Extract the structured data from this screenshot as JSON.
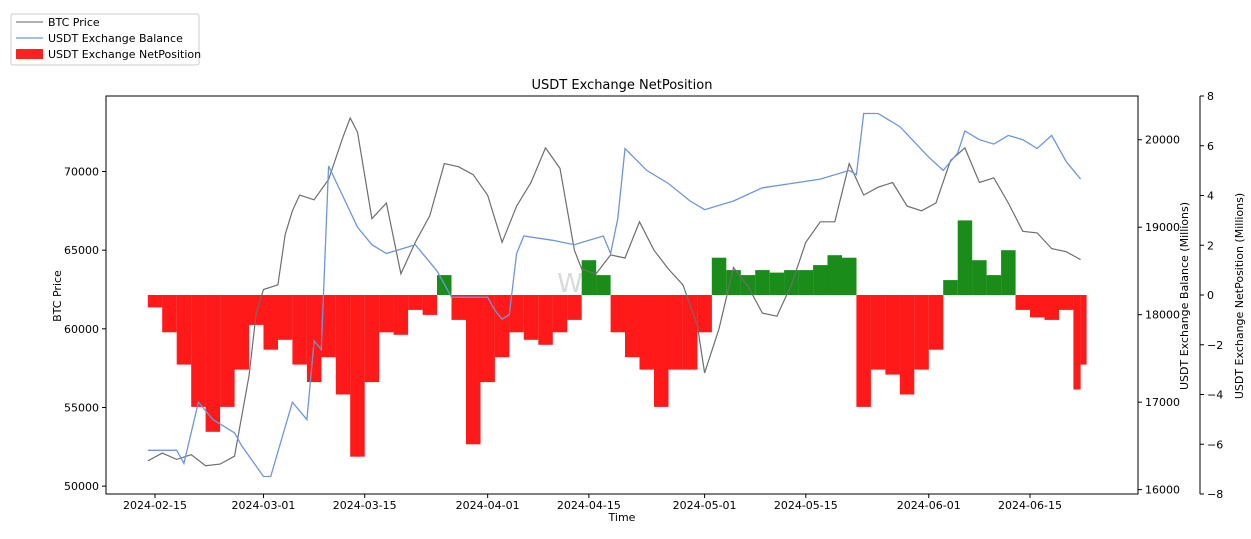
{
  "chart_data": {
    "type": "bar",
    "title": "USDT Exchange NetPosition",
    "xlabel": "Time",
    "ylabel_left": "BTC Price",
    "ylabel_right1": "USDT Exchange Balance (Millions)",
    "ylabel_right2": "USDT Exchange NetPosition (Millions)",
    "watermark": "W",
    "legend_placement": "top-left (outside plot)",
    "legend": [
      {
        "label": "BTC Price",
        "color": "#7f7f7f",
        "kind": "line"
      },
      {
        "label": "USDT Exchange Balance",
        "color": "#6f96d8",
        "kind": "line"
      },
      {
        "label": "USDT Exchange NetPosition",
        "color": "#ff0000",
        "kind": "bar"
      }
    ],
    "colors": {
      "price": "#6e6e6e",
      "balance": "#6f96d8",
      "positive": "#008000",
      "negative": "#ff0000"
    },
    "x_ticks": [
      "2024-02-15",
      "2024-03-01",
      "2024-03-15",
      "2024-04-01",
      "2024-04-15",
      "2024-05-01",
      "2024-05-15",
      "2024-06-01",
      "2024-06-15"
    ],
    "ylim_left": [
      49500,
      74800
    ],
    "y_ticks_left": [
      50000,
      55000,
      60000,
      65000,
      70000
    ],
    "ylim_right1": [
      15950,
      20500
    ],
    "y_ticks_right1": [
      16000,
      17000,
      18000,
      19000,
      20000
    ],
    "ylim_right2": [
      -8,
      8
    ],
    "y_ticks_right2": [
      -8,
      -6,
      -4,
      -2,
      0,
      2,
      4,
      6,
      8
    ],
    "btc_price": {
      "dates": [
        "2024-02-14",
        "2024-02-16",
        "2024-02-18",
        "2024-02-20",
        "2024-02-22",
        "2024-02-24",
        "2024-02-26",
        "2024-02-28",
        "2024-02-29",
        "2024-03-01",
        "2024-03-03",
        "2024-03-04",
        "2024-03-05",
        "2024-03-06",
        "2024-03-08",
        "2024-03-10",
        "2024-03-12",
        "2024-03-13",
        "2024-03-14",
        "2024-03-16",
        "2024-03-18",
        "2024-03-20",
        "2024-03-22",
        "2024-03-24",
        "2024-03-26",
        "2024-03-28",
        "2024-03-30",
        "2024-04-01",
        "2024-04-03",
        "2024-04-05",
        "2024-04-07",
        "2024-04-09",
        "2024-04-11",
        "2024-04-13",
        "2024-04-14",
        "2024-04-16",
        "2024-04-18",
        "2024-04-20",
        "2024-04-22",
        "2024-04-24",
        "2024-04-26",
        "2024-04-28",
        "2024-04-30",
        "2024-05-01",
        "2024-05-03",
        "2024-05-05",
        "2024-05-07",
        "2024-05-09",
        "2024-05-11",
        "2024-05-13",
        "2024-05-15",
        "2024-05-17",
        "2024-05-19",
        "2024-05-21",
        "2024-05-23",
        "2024-05-25",
        "2024-05-27",
        "2024-05-29",
        "2024-05-31",
        "2024-06-02",
        "2024-06-04",
        "2024-06-06",
        "2024-06-08",
        "2024-06-10",
        "2024-06-12",
        "2024-06-14",
        "2024-06-16",
        "2024-06-18",
        "2024-06-20",
        "2024-06-22"
      ],
      "values": [
        51600,
        52100,
        51700,
        52000,
        51300,
        51400,
        51900,
        57000,
        61000,
        62500,
        62800,
        66000,
        67500,
        68500,
        68200,
        69500,
        72200,
        73400,
        72500,
        67000,
        68000,
        63500,
        65500,
        67200,
        70500,
        70300,
        69800,
        68500,
        65500,
        67800,
        69300,
        71500,
        70200,
        65000,
        63800,
        63500,
        64700,
        64500,
        66800,
        65000,
        63800,
        62800,
        60200,
        57200,
        60000,
        63900,
        62700,
        61000,
        60800,
        62800,
        65500,
        66800,
        66800,
        70500,
        68500,
        69000,
        69300,
        67800,
        67500,
        68000,
        70700,
        71500,
        69300,
        69600,
        68000,
        66200,
        66100,
        65100,
        64900,
        64400
      ]
    },
    "usdt_balance": {
      "dates": [
        "2024-02-14",
        "2024-02-18",
        "2024-02-19",
        "2024-02-21",
        "2024-02-23",
        "2024-02-26",
        "2024-02-27",
        "2024-03-01",
        "2024-03-02",
        "2024-03-05",
        "2024-03-07",
        "2024-03-08",
        "2024-03-09",
        "2024-03-10",
        "2024-03-14",
        "2024-03-16",
        "2024-03-18",
        "2024-03-20",
        "2024-03-22",
        "2024-03-25",
        "2024-03-27",
        "2024-03-28",
        "2024-04-01",
        "2024-04-02",
        "2024-04-03",
        "2024-04-04",
        "2024-04-05",
        "2024-04-06",
        "2024-04-10",
        "2024-04-13",
        "2024-04-15",
        "2024-04-17",
        "2024-04-18",
        "2024-04-19",
        "2024-04-20",
        "2024-04-23",
        "2024-04-26",
        "2024-04-29",
        "2024-05-01",
        "2024-05-05",
        "2024-05-09",
        "2024-05-13",
        "2024-05-17",
        "2024-05-21",
        "2024-05-22",
        "2024-05-23",
        "2024-05-25",
        "2024-05-28",
        "2024-06-01",
        "2024-06-03",
        "2024-06-05",
        "2024-06-06",
        "2024-06-08",
        "2024-06-10",
        "2024-06-12",
        "2024-06-14",
        "2024-06-16",
        "2024-06-18",
        "2024-06-20",
        "2024-06-22"
      ],
      "values": [
        16450,
        16450,
        16300,
        17000,
        16800,
        16650,
        16500,
        16150,
        16150,
        17000,
        16800,
        17700,
        17600,
        19700,
        19000,
        18800,
        18700,
        18750,
        18800,
        18500,
        18200,
        18200,
        18200,
        18050,
        17950,
        18000,
        18700,
        18900,
        18850,
        18800,
        18850,
        18900,
        18700,
        19100,
        19900,
        19650,
        19500,
        19300,
        19200,
        19300,
        19450,
        19500,
        19550,
        19650,
        19600,
        20300,
        20300,
        20150,
        19800,
        19650,
        19850,
        20100,
        20000,
        19950,
        20050,
        20000,
        19900,
        20050,
        19750,
        19550
      ]
    },
    "net_position": {
      "dates": [
        "2024-02-14",
        "2024-02-16",
        "2024-02-18",
        "2024-02-20",
        "2024-02-22",
        "2024-02-24",
        "2024-02-26",
        "2024-02-28",
        "2024-03-01",
        "2024-03-03",
        "2024-03-05",
        "2024-03-07",
        "2024-03-09",
        "2024-03-11",
        "2024-03-13",
        "2024-03-15",
        "2024-03-17",
        "2024-03-19",
        "2024-03-21",
        "2024-03-23",
        "2024-03-25",
        "2024-03-27",
        "2024-03-29",
        "2024-03-31",
        "2024-04-02",
        "2024-04-04",
        "2024-04-06",
        "2024-04-08",
        "2024-04-10",
        "2024-04-12",
        "2024-04-14",
        "2024-04-16",
        "2024-04-18",
        "2024-04-20",
        "2024-04-22",
        "2024-04-24",
        "2024-04-26",
        "2024-04-28",
        "2024-04-30",
        "2024-05-02",
        "2024-05-04",
        "2024-05-06",
        "2024-05-08",
        "2024-05-10",
        "2024-05-12",
        "2024-05-14",
        "2024-05-16",
        "2024-05-18",
        "2024-05-20",
        "2024-05-22",
        "2024-05-24",
        "2024-05-26",
        "2024-05-28",
        "2024-05-30",
        "2024-06-01",
        "2024-06-03",
        "2024-06-05",
        "2024-06-07",
        "2024-06-09",
        "2024-06-11",
        "2024-06-13",
        "2024-06-15",
        "2024-06-17",
        "2024-06-19",
        "2024-06-21",
        "2024-06-22"
      ],
      "values": [
        -0.5,
        -1.5,
        -2.8,
        -4.5,
        -5.5,
        -4.5,
        -3.0,
        -1.2,
        -2.2,
        -1.8,
        -2.8,
        -3.5,
        -2.5,
        -4.0,
        -6.5,
        -3.5,
        -1.5,
        -1.6,
        -0.6,
        -0.8,
        0.8,
        -1.0,
        -6.0,
        -3.5,
        -2.5,
        -1.5,
        -1.8,
        -2.0,
        -1.5,
        -1.0,
        1.4,
        0.8,
        -1.5,
        -2.5,
        -3.0,
        -4.5,
        -3.0,
        -3.0,
        -1.5,
        1.5,
        1.0,
        0.8,
        1.0,
        0.9,
        1.0,
        1.0,
        1.2,
        1.6,
        1.5,
        -4.5,
        -3.0,
        -3.2,
        -4.0,
        -3.0,
        -2.2,
        0.6,
        3.0,
        1.4,
        0.8,
        1.8,
        -0.6,
        -0.9,
        -1.0,
        -0.6,
        -3.8,
        -2.8
      ]
    }
  }
}
